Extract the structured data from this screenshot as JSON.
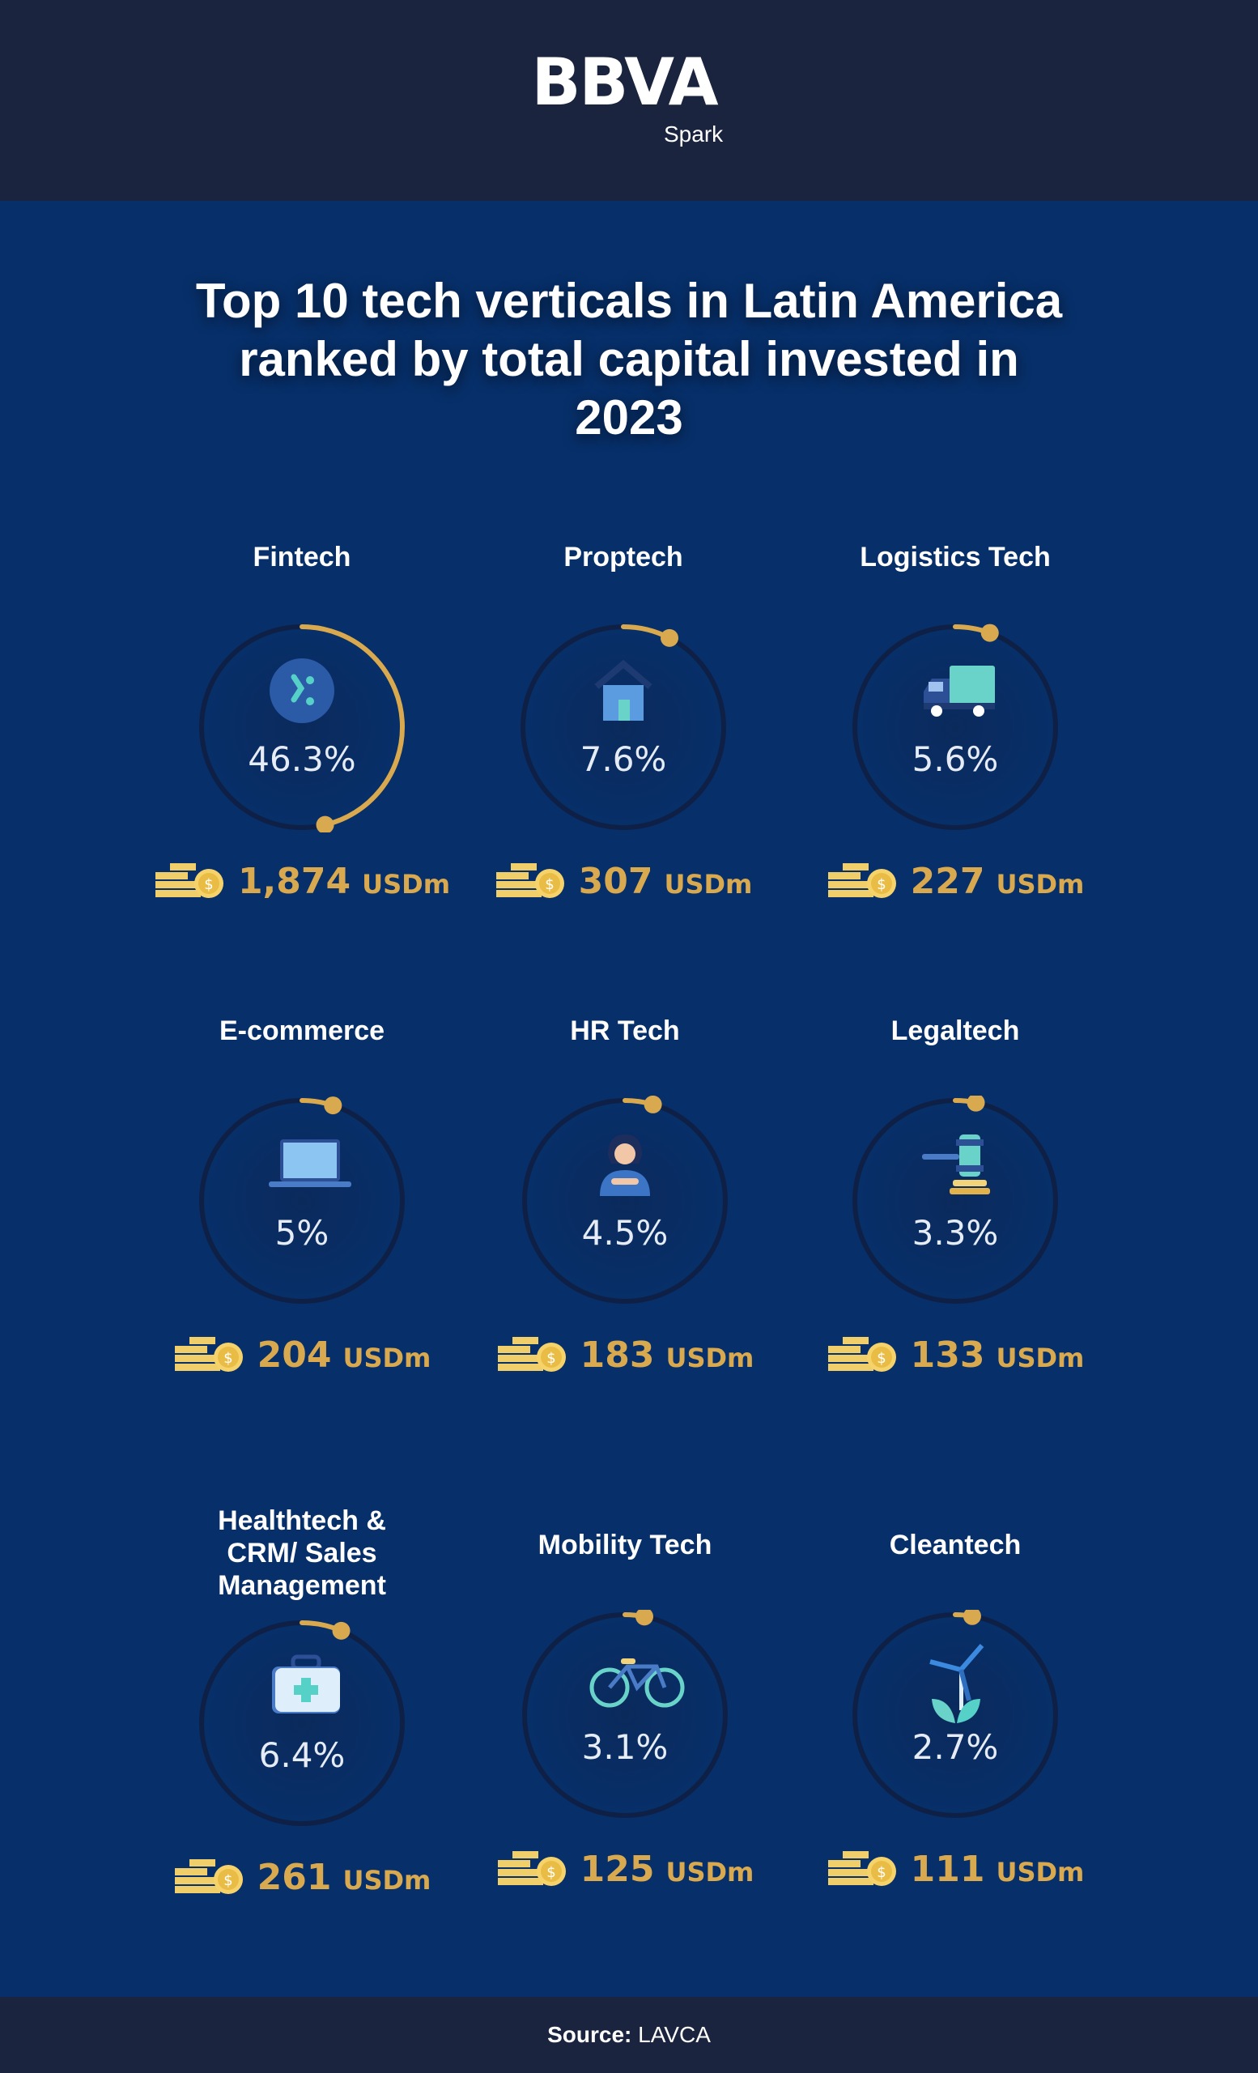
{
  "brand": {
    "logo": "BBVA",
    "sub": "Spark"
  },
  "title": "Top 10 tech verticals in Latin America ranked by total capital invested in 2023",
  "colors": {
    "header_bg": "#1a243e",
    "main_bg": "#072f69",
    "accent_gold": "#d9a94f",
    "ring_dark": "#0f2047"
  },
  "verticals": [
    {
      "name": "Fintech",
      "share_pct": 46.3,
      "share_label": "46.3%",
      "amount": "1,874",
      "unit": "USDm",
      "icon": "fintech-percent-icon"
    },
    {
      "name": "Proptech",
      "share_pct": 7.6,
      "share_label": "7.6%",
      "amount": "307",
      "unit": "USDm",
      "icon": "house-icon"
    },
    {
      "name": "Logistics Tech",
      "share_pct": 5.6,
      "share_label": "5.6%",
      "amount": "227",
      "unit": "USDm",
      "icon": "truck-icon"
    },
    {
      "name": "E-commerce",
      "share_pct": 5,
      "share_label": "5%",
      "amount": "204",
      "unit": "USDm",
      "icon": "laptop-icon"
    },
    {
      "name": "HR Tech",
      "share_pct": 4.5,
      "share_label": "4.5%",
      "amount": "183",
      "unit": "USDm",
      "icon": "person-icon"
    },
    {
      "name": "Legaltech",
      "share_pct": 3.3,
      "share_label": "3.3%",
      "amount": "133",
      "unit": "USDm",
      "icon": "gavel-icon"
    },
    {
      "name": "Healthtech & CRM/ Sales Management",
      "share_pct": 6.4,
      "share_label": "6.4%",
      "amount": "261",
      "unit": "USDm",
      "icon": "first-aid-kit-icon"
    },
    {
      "name": "Mobility Tech",
      "share_pct": 3.1,
      "share_label": "3.1%",
      "amount": "125",
      "unit": "USDm",
      "icon": "bicycle-icon"
    },
    {
      "name": "Cleantech",
      "share_pct": 2.7,
      "share_label": "2.7%",
      "amount": "111",
      "unit": "USDm",
      "icon": "wind-turbine-plant-icon"
    }
  ],
  "footer": {
    "source_label": "Source:",
    "source_value": "LAVCA"
  }
}
